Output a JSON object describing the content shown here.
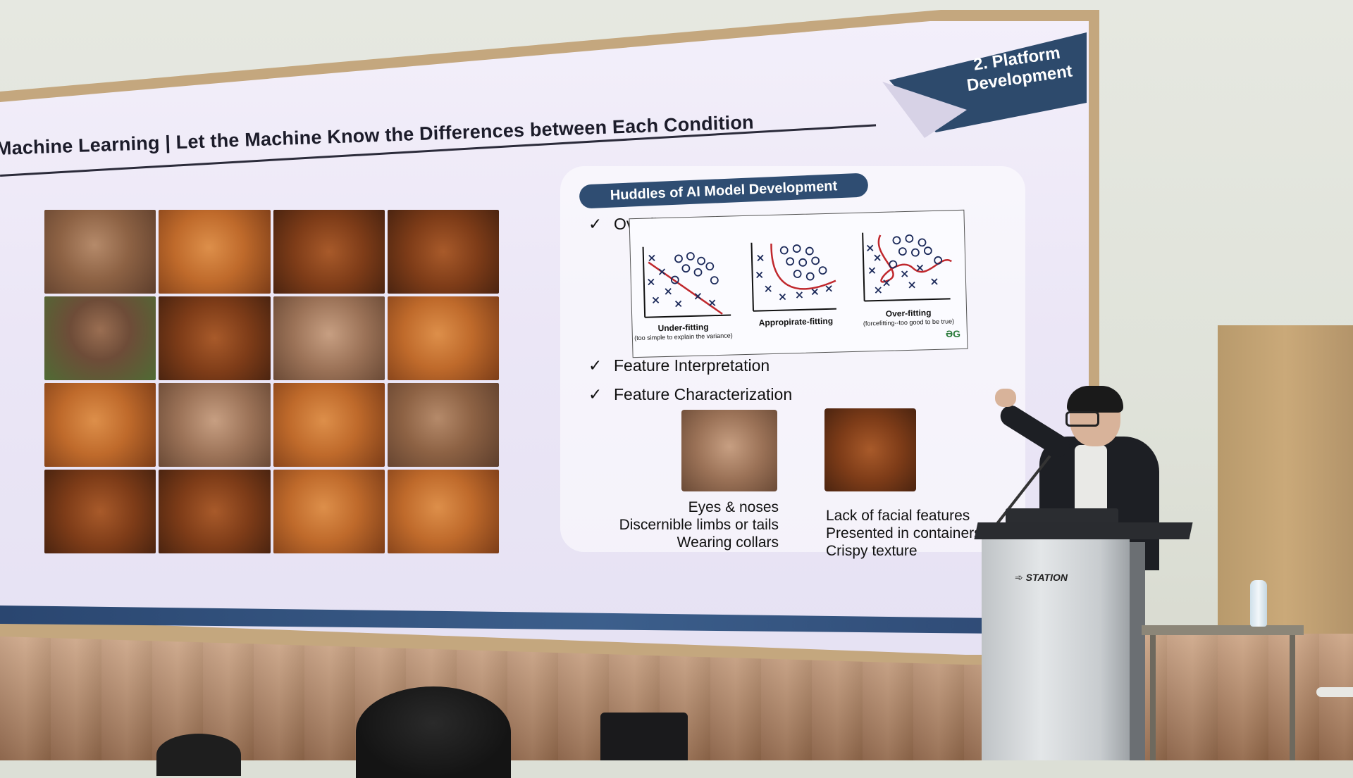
{
  "slide": {
    "section_tag": "2. Platform Development",
    "title": "Machine Learning | Let the Machine Know the Differences between Each Condition",
    "panel_header": "Huddles of AI Model Development",
    "checks": [
      {
        "mark": "✓",
        "label": "Overfitting"
      },
      {
        "mark": "✓",
        "label": "Feature Interpretation"
      },
      {
        "mark": "✓",
        "label": "Feature Characterization"
      }
    ],
    "fit_charts": [
      {
        "label": "Under-fitting",
        "sublabel": "(too simple to explain the variance)"
      },
      {
        "label": "Appropirate-fitting",
        "sublabel": ""
      },
      {
        "label": "Over-fitting",
        "sublabel": "(forcefitting--too good to be true)"
      }
    ],
    "gfg_logo": "ƏG",
    "dog_features": [
      "Eyes & noses",
      "Discernible limbs or tails",
      "Wearing collars"
    ],
    "chicken_features": [
      "Lack of facial features",
      "Presented in containers",
      "Crispy texture"
    ]
  },
  "image_grid": [
    "dog",
    "chicken",
    "chicken-dark",
    "chicken-dark",
    "grass",
    "chicken-dark",
    "dog-light",
    "chicken",
    "chicken",
    "dog-light",
    "chicken",
    "dog",
    "chicken-dark",
    "chicken-dark",
    "chicken",
    "chicken"
  ],
  "podium": {
    "brand": "STATION"
  },
  "colors": {
    "accent": "#2f4d72",
    "screen": "#ece8f6",
    "frame": "#c4a77e"
  }
}
